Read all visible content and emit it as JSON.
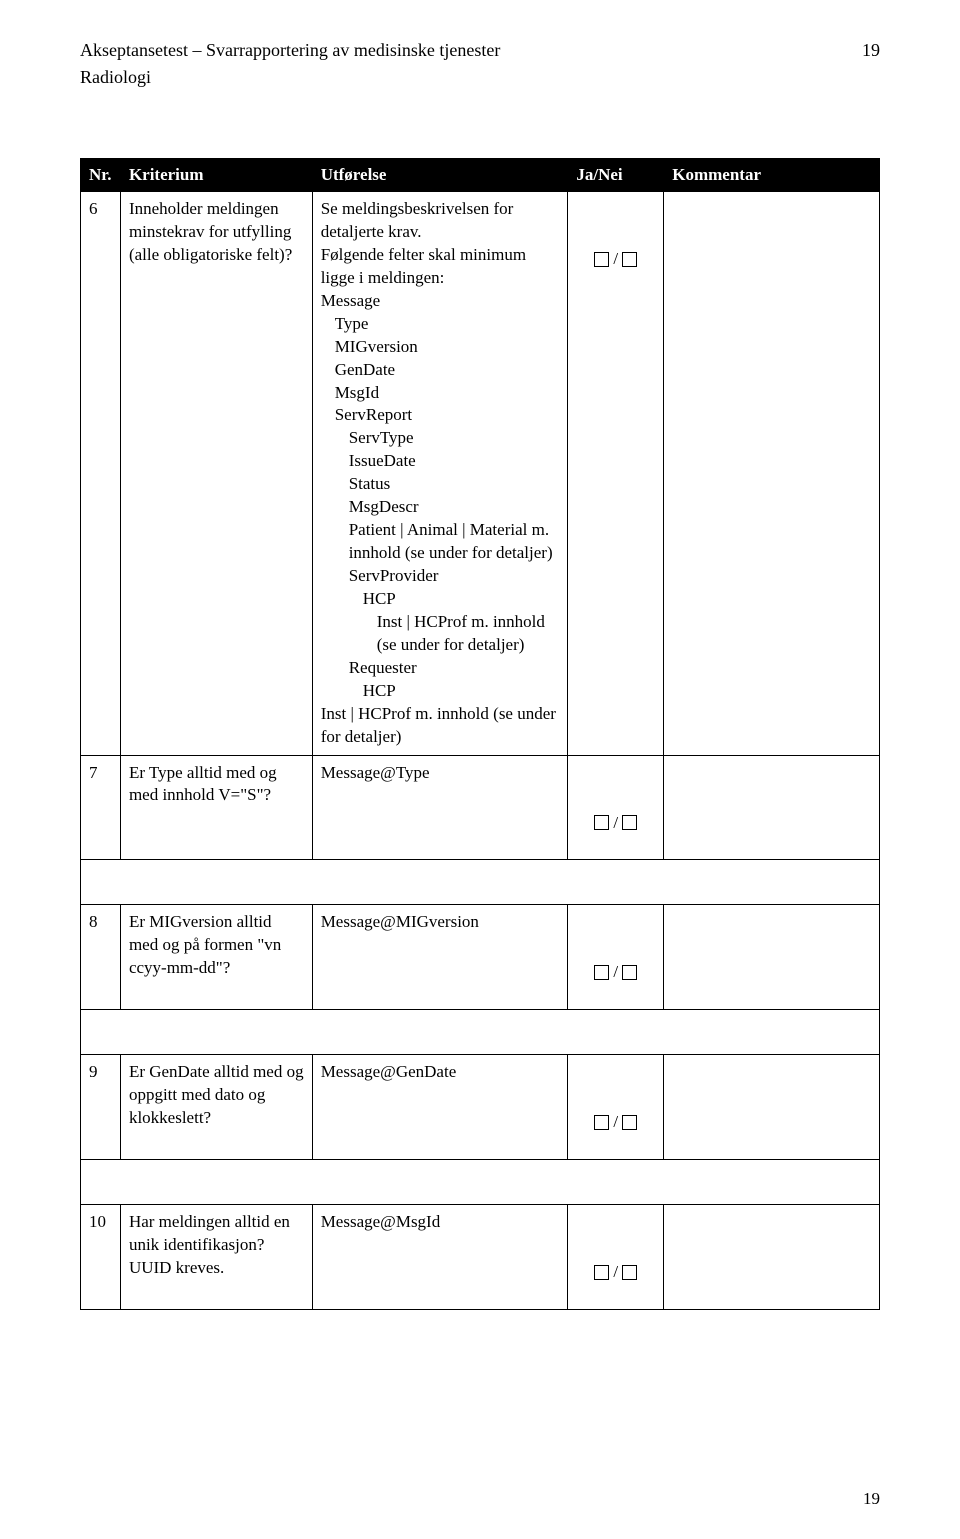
{
  "header": {
    "title_line1": "Akseptansetest – Svarrapportering av medisinske tjenester",
    "title_line2": "Radiologi",
    "page_top": "19"
  },
  "table": {
    "headers": [
      "Nr.",
      "Kriterium",
      "Utførelse",
      "Ja/Nei",
      "Kommentar"
    ],
    "rows": [
      {
        "nr": "6",
        "kriterium": "Inneholder meldingen minstekrav for utfylling (alle obligatoriske felt)?",
        "utf_intro": "Se meldingsbeskrivelsen for detaljerte krav.\nFølgende felter skal minimum ligge i meldingen:",
        "utf_tree": [
          {
            "t": "Message",
            "i": 0
          },
          {
            "t": "Type",
            "i": 1
          },
          {
            "t": "MIGversion",
            "i": 1
          },
          {
            "t": "GenDate",
            "i": 1
          },
          {
            "t": "MsgId",
            "i": 1
          },
          {
            "t": "ServReport",
            "i": 1
          },
          {
            "t": "ServType",
            "i": 2
          },
          {
            "t": "IssueDate",
            "i": 2
          },
          {
            "t": "Status",
            "i": 2
          },
          {
            "t": "MsgDescr",
            "i": 2
          },
          {
            "t": "Patient | Animal | Material m. innhold (se under for detaljer)",
            "i": 2,
            "wrap": true
          },
          {
            "t": "ServProvider",
            "i": 2
          },
          {
            "t": "HCP",
            "i": 3
          },
          {
            "t": "Inst | HCProf  m. innhold (se under for detaljer)",
            "i": 4,
            "wrap": true
          },
          {
            "t": "Requester",
            "i": 2
          },
          {
            "t": "HCP",
            "i": 3
          },
          {
            "t": "Inst | HCProf  m. innhold (se under for detaljer)",
            "i": 0,
            "wrap": true
          }
        ]
      },
      {
        "nr": "7",
        "kriterium": "Er Type alltid med og med innhold V=\"S\"?",
        "utf_plain": "Message@Type"
      },
      {
        "nr": "8",
        "kriterium": "Er MIGversion alltid med og på formen \"vn ccyy-mm-dd\"?",
        "utf_plain": "Message@MIGversion"
      },
      {
        "nr": "9",
        "kriterium": "Er GenDate alltid med og oppgitt med dato og klokkeslett?",
        "utf_plain": "Message@GenDate"
      },
      {
        "nr": "10",
        "kriterium": "Har meldingen alltid en unik identifikasjon? UUID kreves.",
        "utf_plain": "Message@MsgId"
      }
    ]
  },
  "footer": {
    "page_bottom": "19"
  },
  "colors": {
    "header_bg": "#000000",
    "header_fg": "#ffffff",
    "body_fg": "#000000",
    "page_bg": "#ffffff"
  }
}
